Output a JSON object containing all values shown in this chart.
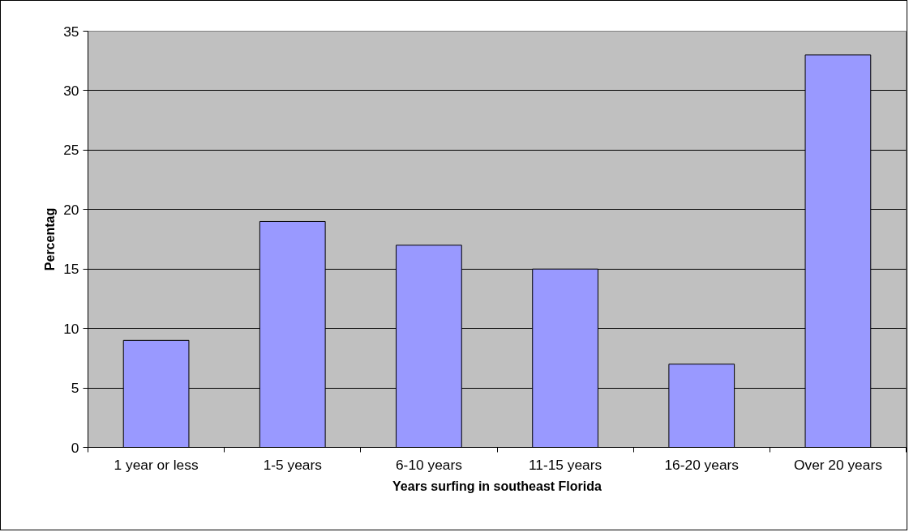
{
  "chart_data": {
    "type": "bar",
    "xlabel": "Years surfing in southeast Florida",
    "ylabel": "Percentag",
    "categories": [
      "1 year or less",
      "1-5 years",
      "6-10 years",
      "11-15 years",
      "16-20 years",
      "Over 20 years"
    ],
    "values": [
      9,
      19,
      17,
      15,
      7,
      33
    ],
    "color": "#9999ff",
    "ylim": [
      0,
      35
    ],
    "yticks": [
      0,
      5,
      10,
      15,
      20,
      25,
      30,
      35
    ],
    "grid": "y"
  }
}
